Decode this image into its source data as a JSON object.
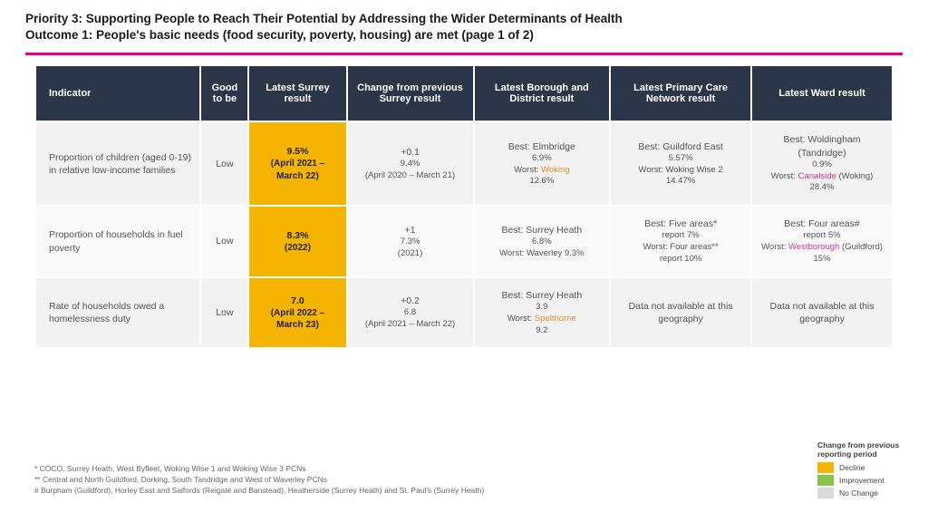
{
  "header": {
    "line1": "Priority 3: Supporting People to Reach Their Potential by Addressing the Wider Determinants of Health",
    "line2": "Outcome 1: People's basic needs (food security, poverty, housing) are met  (page 1 of 2)"
  },
  "colors": {
    "rule": "#e6007e",
    "header_bg": "#2b3648",
    "decline": "#f5b400",
    "improvement": "#8bc34a",
    "nochange": "#d9d9d9",
    "worst_orange": "#e38b2a",
    "worst_magenta": "#d6348a"
  },
  "columns": {
    "indicator": "Indicator",
    "good": "Good to be",
    "latest": "Latest Surrey result",
    "change": "Change from previous Surrey result",
    "borough": "Latest Borough and District result",
    "pcn": "Latest Primary Care Network result",
    "ward": "Latest Ward result"
  },
  "rows": [
    {
      "indicator": "Proportion of children (aged 0-19) in relative low-income families",
      "good": "Low",
      "latest_value": "9.5%",
      "latest_period": "(April 2021 – March 22)",
      "latest_status": "decline",
      "change_value": "+0.1",
      "change_prev": "9.4%",
      "change_period": "(April 2020 – March 21)",
      "borough_best_label": "Best: Elmbridge",
      "borough_best_val": "6.9%",
      "borough_worst_prefix": "Worst: ",
      "borough_worst_name": "Woking",
      "borough_worst_val": "12.6%",
      "borough_worst_class": "hot1",
      "pcn_best_label": "Best: Guildford East",
      "pcn_best_val": "5.57%",
      "pcn_worst_prefix": "Worst: Woking Wise 2",
      "pcn_worst_name": "",
      "pcn_worst_val": "14.47%",
      "pcn_worst_class": "",
      "ward_best_label": "Best: Woldingham (Tandridge)",
      "ward_best_val": "0.9%",
      "ward_worst_prefix": "Worst: ",
      "ward_worst_name": "Canalside",
      "ward_worst_suffix": " (Woking)",
      "ward_worst_val": "28.4%",
      "ward_worst_class": "hot2"
    },
    {
      "indicator": "Proportion of households in fuel poverty",
      "good": "Low",
      "latest_value": "8.3%",
      "latest_period": "(2022)",
      "latest_status": "decline",
      "change_value": "+1",
      "change_prev": "7.3%",
      "change_period": "(2021)",
      "borough_best_label": "Best: Surrey Heath",
      "borough_best_val": "6.8%",
      "borough_worst_prefix": "Worst: Waverley 9.3%",
      "borough_worst_name": "",
      "borough_worst_val": "",
      "borough_worst_class": "",
      "pcn_best_label": "Best: Five areas*",
      "pcn_best_val": "report 7%",
      "pcn_worst_prefix": "Worst: Four areas**",
      "pcn_worst_name": "",
      "pcn_worst_val": "report 10%",
      "pcn_worst_class": "",
      "ward_best_label": "Best: Four areas#",
      "ward_best_val": "report 5%",
      "ward_worst_prefix": "Worst: ",
      "ward_worst_name": "Westborough",
      "ward_worst_suffix": " (Guildford)",
      "ward_worst_val": "15%",
      "ward_worst_class": "hot2"
    },
    {
      "indicator": "Rate of households owed a homelessness duty",
      "good": "Low",
      "latest_value": "7.0",
      "latest_period": "(April 2022 – March 23)",
      "latest_status": "decline",
      "change_value": "+0.2",
      "change_prev": "6.8",
      "change_period": "(April 2021 – March 22)",
      "borough_best_label": "Best: Surrey Heath",
      "borough_best_val": "3.9",
      "borough_worst_prefix": "Worst: ",
      "borough_worst_name": "Spelthorne",
      "borough_worst_val": "9.2",
      "borough_worst_class": "hot1",
      "pcn_na": "Data not available at this geography",
      "ward_na": "Data not available at this geography"
    }
  ],
  "footnotes": {
    "f1": "* COCO, Surrey Heath, West Byfleet, Woking Wise 1 and Woking Wise 3 PCNs",
    "f2": "** Central and North Guildford, Dorking, South Tandridge and West of Waverley PCNs",
    "f3": "# Burpham (Guildford), Horley East and Salfords (Reigate and Banstead), Heatherside (Surrey Heath) and St. Paul's (Surrey Heath)"
  },
  "legend": {
    "title": "Change from previous reporting period",
    "decline": "Decline",
    "improvement": "Improvement",
    "nochange": "No Change"
  }
}
